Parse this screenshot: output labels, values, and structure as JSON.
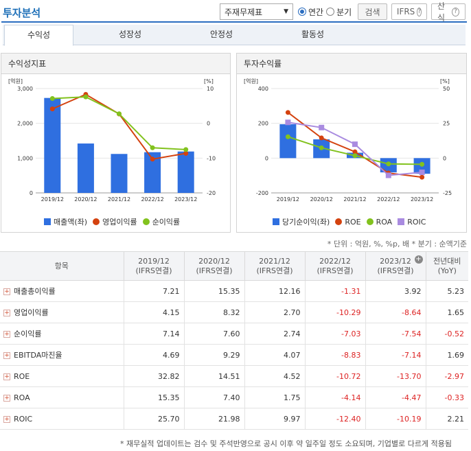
{
  "header": {
    "title": "투자분석",
    "select_value": "주재무제표",
    "radio_annual": "연간",
    "radio_quarter": "분기",
    "search_btn": "검색",
    "ifrs_btn": "IFRS",
    "formula_btn": "산식"
  },
  "tabs": [
    "수익성",
    "성장성",
    "안정성",
    "활동성"
  ],
  "left_panel": {
    "title": "수익성지표",
    "left_unit": "[억원]",
    "right_unit": "[%]",
    "legend": [
      "매출액(좌)",
      "영업이익률",
      "순이익률"
    ]
  },
  "right_panel": {
    "title": "투자수익률",
    "left_unit": "[억원]",
    "right_unit": "[%]",
    "legend": [
      "당기순이익(좌)",
      "ROE",
      "ROA",
      "ROIC"
    ]
  },
  "chart_data": [
    {
      "type": "bar",
      "title": "수익성지표",
      "categories": [
        "2019/12",
        "2020/12",
        "2021/12",
        "2022/12",
        "2023/12"
      ],
      "left_ticks": [
        "3,000",
        "2,000",
        "1,000",
        "0"
      ],
      "right_ticks": [
        "10",
        "0",
        "-10",
        "-20"
      ],
      "ylim_left": [
        0,
        3000
      ],
      "ylim_right": [
        -20,
        10
      ],
      "series": [
        {
          "name": "매출액(좌)",
          "kind": "bar",
          "axis": "left",
          "color": "#2f6fe0",
          "values": [
            2730,
            1420,
            1120,
            1170,
            1190
          ]
        },
        {
          "name": "영업이익률",
          "kind": "line",
          "axis": "right",
          "color": "#d4420f",
          "values": [
            4.15,
            8.32,
            2.7,
            -10.29,
            -8.64
          ]
        },
        {
          "name": "순이익률",
          "kind": "line",
          "axis": "right",
          "color": "#82c21e",
          "values": [
            7.14,
            7.6,
            2.74,
            -7.03,
            -7.54
          ]
        }
      ]
    },
    {
      "type": "bar",
      "title": "투자수익률",
      "categories": [
        "2019/12",
        "2020/12",
        "2021/12",
        "2022/12",
        "2023/12"
      ],
      "left_ticks": [
        "400",
        "200",
        "0",
        "-200"
      ],
      "right_ticks": [
        "50",
        "25",
        "0",
        "-25"
      ],
      "ylim_left": [
        -200,
        400
      ],
      "ylim_right": [
        -25,
        50
      ],
      "series": [
        {
          "name": "당기순이익(좌)",
          "kind": "bar",
          "axis": "left",
          "color": "#2f6fe0",
          "values": [
            195,
            108,
            31,
            -82,
            -90
          ]
        },
        {
          "name": "ROE",
          "kind": "line",
          "axis": "right",
          "color": "#d4420f",
          "values": [
            32.82,
            14.51,
            4.52,
            -10.72,
            -13.7
          ]
        },
        {
          "name": "ROA",
          "kind": "line",
          "axis": "right",
          "color": "#82c21e",
          "values": [
            15.35,
            7.4,
            1.75,
            -4.14,
            -4.47
          ]
        },
        {
          "name": "ROIC",
          "kind": "line",
          "axis": "right",
          "color": "#a98be0",
          "values": [
            25.7,
            21.98,
            9.97,
            -12.4,
            -10.19
          ]
        }
      ]
    }
  ],
  "units_note": "* 단위 : 억원, %, %p, 배   * 분기 : 순액기준",
  "table": {
    "headers": [
      [
        "항목",
        ""
      ],
      [
        "2019/12",
        "(IFRS연결)"
      ],
      [
        "2020/12",
        "(IFRS연결)"
      ],
      [
        "2021/12",
        "(IFRS연결)"
      ],
      [
        "2022/12",
        "(IFRS연결)"
      ],
      [
        "2023/12",
        "(IFRS연결)"
      ],
      [
        "전년대비",
        "(YoY)"
      ]
    ],
    "rows": [
      {
        "label": "매출총이익률",
        "values": [
          "7.21",
          "15.35",
          "12.16",
          "-1.31",
          "3.92",
          "5.23"
        ]
      },
      {
        "label": "영업이익률",
        "values": [
          "4.15",
          "8.32",
          "2.70",
          "-10.29",
          "-8.64",
          "1.65"
        ]
      },
      {
        "label": "순이익률",
        "values": [
          "7.14",
          "7.60",
          "2.74",
          "-7.03",
          "-7.54",
          "-0.52"
        ]
      },
      {
        "label": "EBITDA마진율",
        "values": [
          "4.69",
          "9.29",
          "4.07",
          "-8.83",
          "-7.14",
          "1.69"
        ]
      },
      {
        "label": "ROE",
        "values": [
          "32.82",
          "14.51",
          "4.52",
          "-10.72",
          "-13.70",
          "-2.97"
        ]
      },
      {
        "label": "ROA",
        "values": [
          "15.35",
          "7.40",
          "1.75",
          "-4.14",
          "-4.47",
          "-0.33"
        ]
      },
      {
        "label": "ROIC",
        "values": [
          "25.70",
          "21.98",
          "9.97",
          "-12.40",
          "-10.19",
          "2.21"
        ]
      }
    ]
  },
  "footnote": "* 재무실적 업데이트는 검수 및 주석반영으로 공시 이후 약 일주일 정도 소요되며, 기업별로 다르게 적용됨"
}
